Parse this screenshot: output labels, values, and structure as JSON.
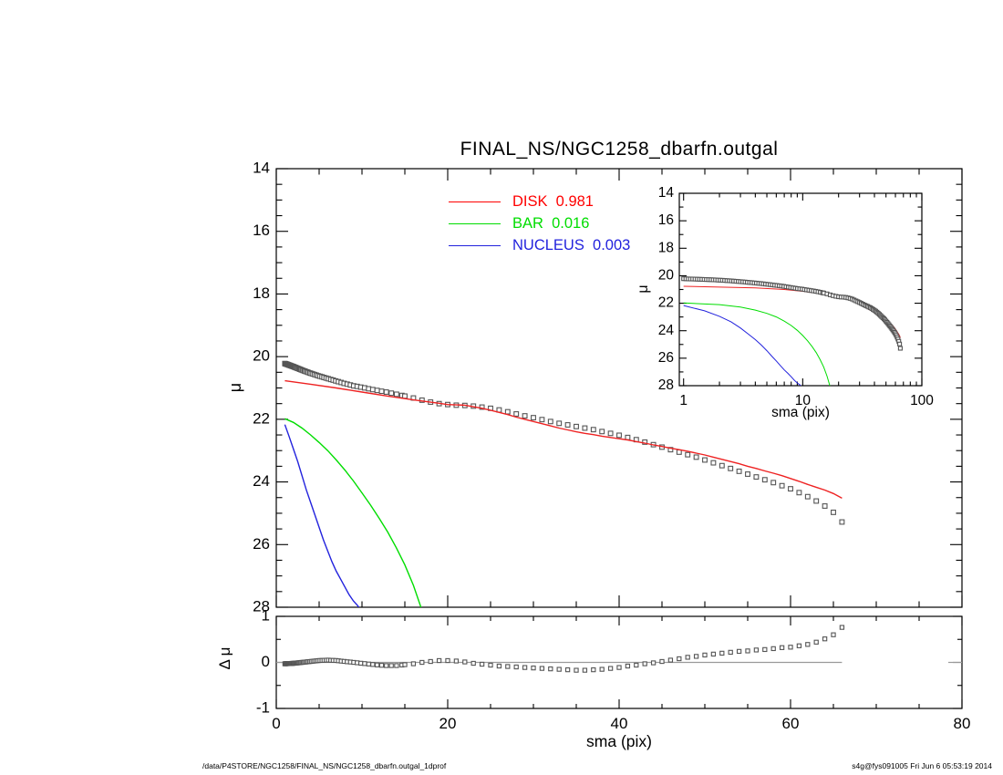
{
  "title": "FINAL_NS/NGC1258_dbarfn.outgal",
  "labels": {
    "xlabel": "sma (pix)",
    "ylabel_mu": "μ",
    "ylabel_dmu": "Δ μ",
    "inset_xlabel": "sma (pix)",
    "inset_ylabel": "μ"
  },
  "legend": {
    "items": [
      {
        "label": "DISK  0.981",
        "color": "#ff0000"
      },
      {
        "label": "BAR  0.016",
        "color": "#00dd00"
      },
      {
        "label": "NUCLEUS  0.003",
        "color": "#2222dd"
      }
    ]
  },
  "footer": {
    "left": "/data/P4STORE/NGC1258/FINAL_NS/NGC1258_dbarfn.outgal_1dprof",
    "right": "s4g@fys091005  Fri Jun  6 05:53:19 2014"
  },
  "colors": {
    "frame": "#000000",
    "data_marker": "#555555",
    "disk": "#ee2222",
    "bar": "#00dd00",
    "nucleus": "#2222dd",
    "zero_line": "#9a9a9a",
    "background": "#ffffff"
  },
  "chart_data": [
    {
      "id": "main-profile",
      "type": "scatter",
      "title": "FINAL_NS/NGC1258_dbarfn.outgal",
      "xlabel": "sma (pix)",
      "ylabel": "μ",
      "xlim": [
        0,
        80
      ],
      "ylim": [
        28,
        14
      ],
      "x_major_ticks": [
        0,
        20,
        40,
        60,
        80
      ],
      "x_minor_step": 5,
      "y_major_ticks": [
        14,
        16,
        18,
        20,
        22,
        24,
        26,
        28
      ],
      "y_minor_step": 0.5,
      "x_tick_labels_shown": false,
      "series": [
        {
          "name": "profile-data",
          "style": "open-squares",
          "color": "#555555",
          "points": [
            [
              1,
              20.22
            ],
            [
              2,
              20.32
            ],
            [
              3,
              20.43
            ],
            [
              4,
              20.53
            ],
            [
              5,
              20.62
            ],
            [
              6,
              20.7
            ],
            [
              7,
              20.78
            ],
            [
              8,
              20.86
            ],
            [
              9,
              20.93
            ],
            [
              10,
              20.98
            ],
            [
              11,
              21.04
            ],
            [
              12,
              21.09
            ],
            [
              13,
              21.14
            ],
            [
              14,
              21.2
            ],
            [
              15,
              21.26
            ],
            [
              16,
              21.32
            ],
            [
              17,
              21.39
            ],
            [
              18,
              21.45
            ],
            [
              19,
              21.5
            ],
            [
              20,
              21.53
            ],
            [
              21,
              21.55
            ],
            [
              22,
              21.56
            ],
            [
              23,
              21.58
            ],
            [
              24,
              21.61
            ],
            [
              25,
              21.65
            ],
            [
              26,
              21.7
            ],
            [
              27,
              21.76
            ],
            [
              28,
              21.83
            ],
            [
              29,
              21.89
            ],
            [
              30,
              21.95
            ],
            [
              31,
              22.01
            ],
            [
              32,
              22.07
            ],
            [
              33,
              22.13
            ],
            [
              34,
              22.18
            ],
            [
              35,
              22.23
            ],
            [
              36,
              22.28
            ],
            [
              37,
              22.33
            ],
            [
              38,
              22.39
            ],
            [
              39,
              22.45
            ],
            [
              40,
              22.51
            ],
            [
              41,
              22.58
            ],
            [
              42,
              22.65
            ],
            [
              43,
              22.73
            ],
            [
              44,
              22.81
            ],
            [
              45,
              22.89
            ],
            [
              46,
              22.97
            ],
            [
              47,
              23.05
            ],
            [
              48,
              23.13
            ],
            [
              49,
              23.21
            ],
            [
              50,
              23.3
            ],
            [
              51,
              23.39
            ],
            [
              52,
              23.48
            ],
            [
              53,
              23.57
            ],
            [
              54,
              23.66
            ],
            [
              55,
              23.75
            ],
            [
              56,
              23.84
            ],
            [
              57,
              23.93
            ],
            [
              58,
              24.02
            ],
            [
              59,
              24.12
            ],
            [
              60,
              24.22
            ],
            [
              61,
              24.34
            ],
            [
              62,
              24.47
            ],
            [
              63,
              24.61
            ],
            [
              64,
              24.77
            ],
            [
              65,
              24.97
            ],
            [
              66,
              25.28
            ]
          ]
        },
        {
          "name": "DISK",
          "style": "line",
          "color": "#ee2222",
          "points": [
            [
              1,
              20.77
            ],
            [
              4,
              20.88
            ],
            [
              7,
              21.0
            ],
            [
              10,
              21.13
            ],
            [
              13,
              21.26
            ],
            [
              16,
              21.38
            ],
            [
              19,
              21.49
            ],
            [
              20,
              21.53
            ],
            [
              21,
              21.54
            ],
            [
              22,
              21.55
            ],
            [
              23,
              21.6
            ],
            [
              24,
              21.65
            ],
            [
              25,
              21.71
            ],
            [
              26,
              21.78
            ],
            [
              27,
              21.85
            ],
            [
              28,
              21.93
            ],
            [
              29,
              22.0
            ],
            [
              30,
              22.07
            ],
            [
              31,
              22.14
            ],
            [
              32,
              22.21
            ],
            [
              33,
              22.28
            ],
            [
              34,
              22.34
            ],
            [
              35,
              22.4
            ],
            [
              36,
              22.45
            ],
            [
              37,
              22.49
            ],
            [
              38,
              22.54
            ],
            [
              39,
              22.58
            ],
            [
              40,
              22.62
            ],
            [
              41,
              22.66
            ],
            [
              42,
              22.71
            ],
            [
              43,
              22.76
            ],
            [
              44,
              22.82
            ],
            [
              45,
              22.87
            ],
            [
              46,
              22.92
            ],
            [
              47,
              22.97
            ],
            [
              48,
              23.02
            ],
            [
              49,
              23.08
            ],
            [
              50,
              23.14
            ],
            [
              51,
              23.21
            ],
            [
              52,
              23.28
            ],
            [
              53,
              23.35
            ],
            [
              54,
              23.42
            ],
            [
              55,
              23.5
            ],
            [
              56,
              23.57
            ],
            [
              57,
              23.65
            ],
            [
              58,
              23.72
            ],
            [
              59,
              23.8
            ],
            [
              60,
              23.89
            ],
            [
              61,
              23.98
            ],
            [
              62,
              24.08
            ],
            [
              63,
              24.17
            ],
            [
              64,
              24.26
            ],
            [
              65,
              24.37
            ],
            [
              66,
              24.52
            ]
          ]
        },
        {
          "name": "BAR",
          "style": "line",
          "color": "#00dd00",
          "points": [
            [
              1,
              21.98
            ],
            [
              2,
              22.1
            ],
            [
              3,
              22.28
            ],
            [
              4,
              22.5
            ],
            [
              5,
              22.74
            ],
            [
              6,
              23.0
            ],
            [
              7,
              23.3
            ],
            [
              8,
              23.62
            ],
            [
              9,
              23.97
            ],
            [
              10,
              24.35
            ],
            [
              11,
              24.74
            ],
            [
              12,
              25.16
            ],
            [
              13,
              25.6
            ],
            [
              14,
              26.1
            ],
            [
              15,
              26.65
            ],
            [
              16,
              27.3
            ],
            [
              17,
              28.1
            ]
          ]
        },
        {
          "name": "NUCLEUS",
          "style": "line",
          "color": "#2222dd",
          "points": [
            [
              1,
              22.17
            ],
            [
              1.5,
              22.55
            ],
            [
              2,
              22.95
            ],
            [
              2.5,
              23.35
            ],
            [
              3,
              23.8
            ],
            [
              3.5,
              24.25
            ],
            [
              4,
              24.65
            ],
            [
              4.5,
              25.05
            ],
            [
              5,
              25.45
            ],
            [
              5.5,
              25.85
            ],
            [
              6,
              26.2
            ],
            [
              6.5,
              26.55
            ],
            [
              7,
              26.85
            ],
            [
              7.5,
              27.1
            ],
            [
              8,
              27.35
            ],
            [
              8.5,
              27.6
            ],
            [
              9,
              27.8
            ],
            [
              9.5,
              27.95
            ],
            [
              10,
              28.15
            ]
          ]
        }
      ]
    },
    {
      "id": "inset-log",
      "type": "scatter",
      "xscale": "log",
      "xlabel": "sma (pix)",
      "ylabel": "μ",
      "xlim": [
        1,
        100
      ],
      "ylim": [
        28,
        14
      ],
      "x_major_ticks": [
        1,
        10,
        100
      ],
      "y_major_ticks": [
        14,
        16,
        18,
        20,
        22,
        24,
        26,
        28
      ],
      "y_minor_step": 1,
      "series_ref": "main-profile"
    },
    {
      "id": "residual",
      "type": "scatter",
      "xlabel": "sma (pix)",
      "ylabel": "Δ μ",
      "xlim": [
        0,
        80
      ],
      "ylim": [
        -1,
        1
      ],
      "x_major_ticks": [
        0,
        20,
        40,
        60,
        80
      ],
      "x_minor_step": 5,
      "y_major_ticks": [
        1,
        0,
        -1
      ],
      "y_minor_step": 0.5,
      "zero_line": true,
      "series": [
        {
          "name": "residual-data",
          "style": "open-squares",
          "color": "#555555",
          "points": [
            [
              1,
              -0.03
            ],
            [
              2,
              -0.02
            ],
            [
              3,
              0.0
            ],
            [
              4,
              0.02
            ],
            [
              5,
              0.04
            ],
            [
              6,
              0.05
            ],
            [
              7,
              0.04
            ],
            [
              8,
              0.02
            ],
            [
              9,
              0.0
            ],
            [
              10,
              -0.02
            ],
            [
              11,
              -0.04
            ],
            [
              12,
              -0.06
            ],
            [
              13,
              -0.07
            ],
            [
              14,
              -0.07
            ],
            [
              15,
              -0.05
            ],
            [
              16,
              -0.03
            ],
            [
              17,
              0.0
            ],
            [
              18,
              0.02
            ],
            [
              19,
              0.04
            ],
            [
              20,
              0.04
            ],
            [
              21,
              0.03
            ],
            [
              22,
              0.01
            ],
            [
              23,
              -0.02
            ],
            [
              24,
              -0.04
            ],
            [
              25,
              -0.06
            ],
            [
              26,
              -0.08
            ],
            [
              27,
              -0.09
            ],
            [
              28,
              -0.1
            ],
            [
              29,
              -0.11
            ],
            [
              30,
              -0.12
            ],
            [
              31,
              -0.13
            ],
            [
              32,
              -0.14
            ],
            [
              33,
              -0.15
            ],
            [
              34,
              -0.16
            ],
            [
              35,
              -0.17
            ],
            [
              36,
              -0.17
            ],
            [
              37,
              -0.16
            ],
            [
              38,
              -0.15
            ],
            [
              39,
              -0.13
            ],
            [
              40,
              -0.11
            ],
            [
              41,
              -0.08
            ],
            [
              42,
              -0.06
            ],
            [
              43,
              -0.03
            ],
            [
              44,
              -0.01
            ],
            [
              45,
              0.02
            ],
            [
              46,
              0.05
            ],
            [
              47,
              0.08
            ],
            [
              48,
              0.11
            ],
            [
              49,
              0.13
            ],
            [
              50,
              0.16
            ],
            [
              51,
              0.18
            ],
            [
              52,
              0.2
            ],
            [
              53,
              0.22
            ],
            [
              54,
              0.24
            ],
            [
              55,
              0.25
            ],
            [
              56,
              0.27
            ],
            [
              57,
              0.28
            ],
            [
              58,
              0.3
            ],
            [
              59,
              0.32
            ],
            [
              60,
              0.33
            ],
            [
              61,
              0.36
            ],
            [
              62,
              0.39
            ],
            [
              63,
              0.44
            ],
            [
              64,
              0.51
            ],
            [
              65,
              0.6
            ],
            [
              66,
              0.76
            ]
          ]
        }
      ]
    }
  ]
}
